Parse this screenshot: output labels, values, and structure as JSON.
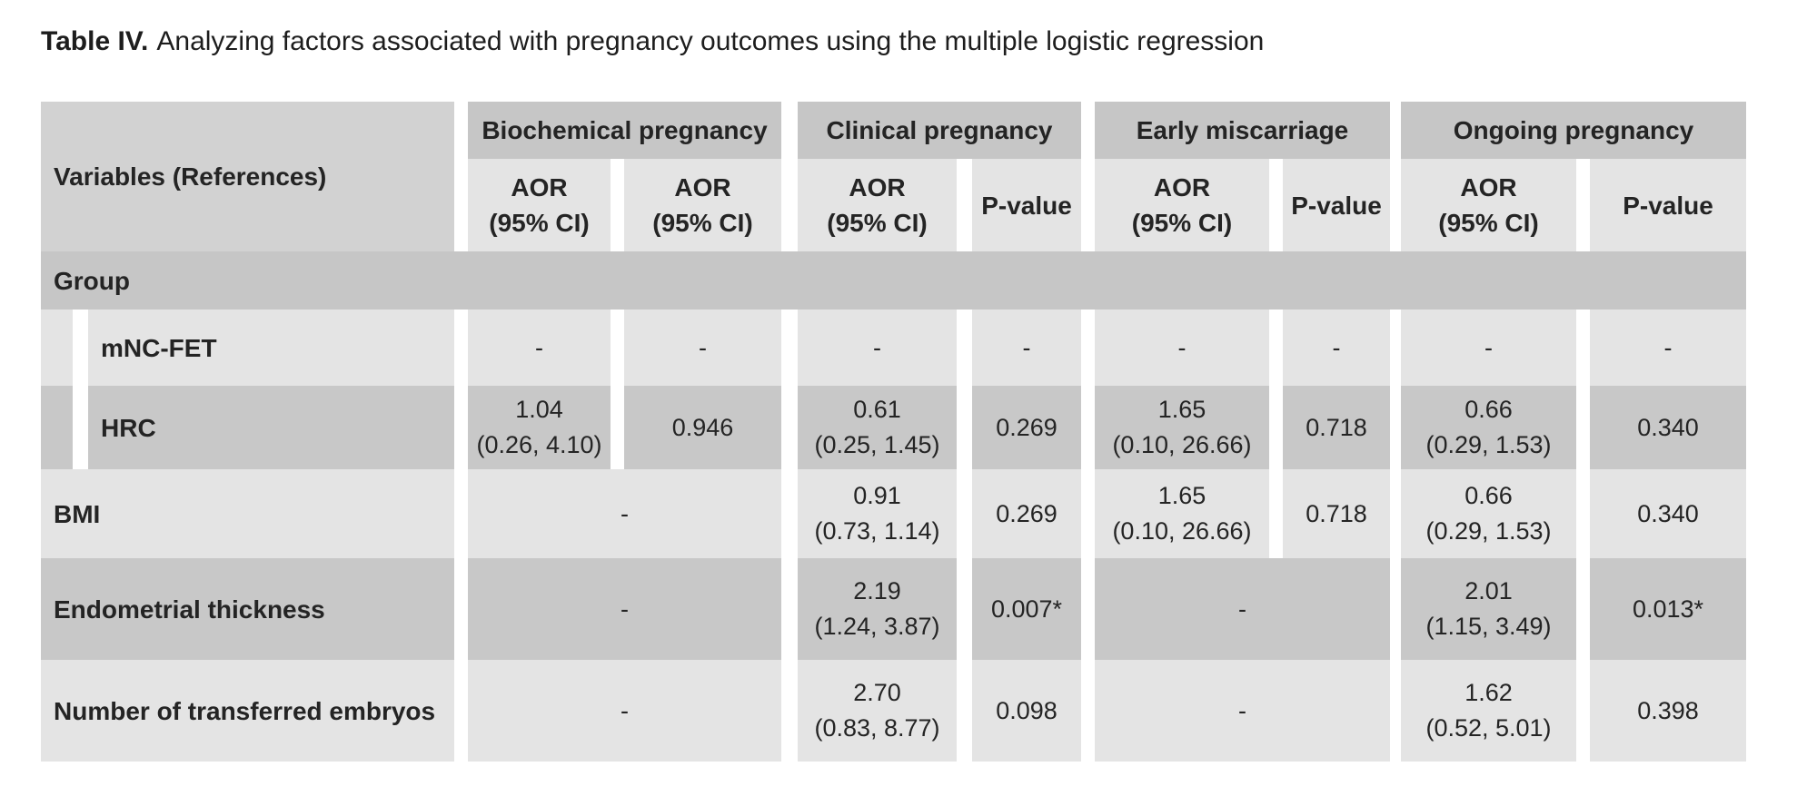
{
  "title": {
    "prefix": "Table IV.",
    "text": "Analyzing factors associated with pregnancy outcomes using the multiple logistic regression"
  },
  "colors": {
    "background": "#ffffff",
    "band": "#c6c6c6",
    "corner": "#d2d2d2",
    "light_row": "#e4e4e4",
    "dark_row": "#c8c8c8",
    "text": "#222222"
  },
  "header": {
    "corner": "Variables (References)",
    "groups": [
      {
        "label": "Biochemical pregnancy",
        "col1": "AOR\n(95% CI)",
        "col2": "AOR\n(95% CI)"
      },
      {
        "label": "Clinical pregnancy",
        "col1": "AOR\n(95% CI)",
        "col2": "P-value"
      },
      {
        "label": "Early miscarriage",
        "col1": "AOR\n(95% CI)",
        "col2": "P-value"
      },
      {
        "label": "Ongoing pregnancy",
        "col1": "AOR\n(95% CI)",
        "col2": "P-value"
      }
    ]
  },
  "body": {
    "section": {
      "label": "Group"
    },
    "mnc_fet": {
      "label": "mNC-FET",
      "cells": [
        "-",
        "-",
        "-",
        "-",
        "-",
        "-",
        "-",
        "-"
      ]
    },
    "hrc": {
      "label": "HRC",
      "cells": [
        "1.04\n(0.26, 4.10)",
        "0.946",
        "0.61\n(0.25, 1.45)",
        "0.269",
        "1.65\n(0.10, 26.66)",
        "0.718",
        "0.66\n(0.29, 1.53)",
        "0.340"
      ]
    },
    "bmi": {
      "label": "BMI",
      "merged_biochemical": "-",
      "cells": [
        "0.91\n(0.73, 1.14)",
        "0.269",
        "1.65\n(0.10, 26.66)",
        "0.718",
        "0.66\n(0.29, 1.53)",
        "0.340"
      ]
    },
    "endometrial": {
      "label": "Endometrial thickness",
      "merged_biochemical": "-",
      "merged_miscarriage": "-",
      "cells": [
        "2.19\n(1.24, 3.87)",
        "0.007*",
        "2.01\n(1.15, 3.49)",
        "0.013*"
      ]
    },
    "embryos": {
      "label": "Number of transferred embryos",
      "merged_biochemical": "-",
      "merged_miscarriage": "-",
      "cells": [
        "2.70\n(0.83, 8.77)",
        "0.098",
        "1.62\n(0.52, 5.01)",
        "0.398"
      ]
    }
  }
}
